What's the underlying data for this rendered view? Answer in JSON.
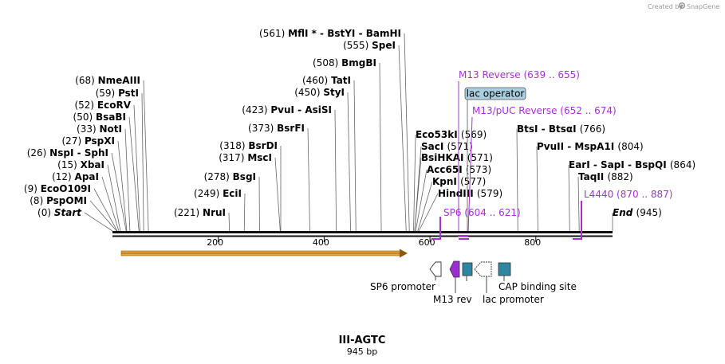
{
  "credit": {
    "prefix": "Created by",
    "brand": "SnapGene"
  },
  "plasmid": {
    "name": "III-AGTC",
    "length_label": "945 bp",
    "length": 945
  },
  "enzyme_labels": [
    {
      "pos": "(0)",
      "name": "Start",
      "style": "italic"
    },
    {
      "pos": "(8)",
      "name": "PspOMI"
    },
    {
      "pos": "(9)",
      "name": "EcoO109I"
    },
    {
      "pos": "(12)",
      "name": "ApaI"
    },
    {
      "pos": "(15)",
      "name": "XbaI"
    },
    {
      "pos": "(26)",
      "name": "NspI  -  SphI"
    },
    {
      "pos": "(27)",
      "name": "PspXI"
    },
    {
      "pos": "(33)",
      "name": "NotI"
    },
    {
      "pos": "(50)",
      "name": "BsaBI"
    },
    {
      "pos": "(52)",
      "name": "EcoRV"
    },
    {
      "pos": "(59)",
      "name": "PstI"
    },
    {
      "pos": "(68)",
      "name": "NmeAIII"
    },
    {
      "pos": "(221)",
      "name": "NruI"
    },
    {
      "pos": "(249)",
      "name": "EciI"
    },
    {
      "pos": "(278)",
      "name": "BsgI"
    },
    {
      "pos": "(317)",
      "name": "MscI"
    },
    {
      "pos": "(318)",
      "name": "BsrDI"
    },
    {
      "pos": "(373)",
      "name": "BsrFI"
    },
    {
      "pos": "(423)",
      "name": "PvuI  -  AsiSI"
    },
    {
      "pos": "(450)",
      "name": "StyI"
    },
    {
      "pos": "(460)",
      "name": "TatI"
    },
    {
      "pos": "(508)",
      "name": "BmgBI"
    },
    {
      "pos": "(555)",
      "name": "SpeI"
    },
    {
      "pos": "(561)",
      "name": "MflI *  -  BstYI  -  BamHI"
    },
    {
      "pos": "(569)",
      "name": "Eco53kI"
    },
    {
      "pos": "(571)",
      "name": "SacI"
    },
    {
      "pos": "(571)",
      "name": "BsiHKAI"
    },
    {
      "pos": "(573)",
      "name": "Acc65I"
    },
    {
      "pos": "(577)",
      "name": "KpnI"
    },
    {
      "pos": "(579)",
      "name": "HindIII"
    },
    {
      "pos": "(766)",
      "name": "BtsI  -  BtsαI"
    },
    {
      "pos": "(804)",
      "name": "PvuII  -  MspA1I"
    },
    {
      "pos": "(864)",
      "name": "EarI  -  SapI  -  BspQI"
    },
    {
      "pos": "(882)",
      "name": "TaqII"
    },
    {
      "pos": "(945)",
      "name": "End",
      "style": "italic"
    }
  ],
  "primer_features": [
    {
      "name": "M13 Reverse",
      "range": "(639 .. 655)"
    },
    {
      "name": "M13/pUC Reverse",
      "range": "(652 .. 674)"
    },
    {
      "name": "SP6",
      "range": "(604 .. 621)"
    },
    {
      "name": "L4440",
      "range": "(870 .. 887)"
    }
  ],
  "boxed_feature": {
    "name": "lac operator",
    "color": "#a9cfe0"
  },
  "ruler_ticks": [
    "200",
    "400",
    "600",
    "800"
  ],
  "bottom_features": [
    "SP6 promoter",
    "M13 rev",
    "lac promoter",
    "CAP binding site"
  ],
  "colors": {
    "primer": "#a431d6",
    "orf": "#e8a33c",
    "cap": "#2f86a2",
    "backbone": "#111111"
  }
}
